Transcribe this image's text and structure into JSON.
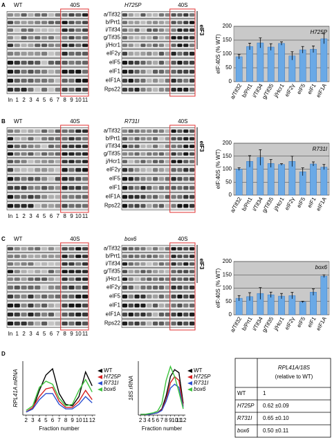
{
  "panels": [
    {
      "letter": "A",
      "strains": [
        "WT",
        "H725P"
      ],
      "fraction_label": "40S",
      "complex": "eIF3",
      "proteins": [
        "a/Tif32",
        "b/Prt1",
        "i/Tif34",
        "g/Tif35",
        "j/Hcr1",
        "eIF2γ",
        "eIF5",
        "eIF1",
        "eIF1A",
        "Rps22"
      ],
      "lanes": [
        "In",
        "1",
        "2",
        "3",
        "4",
        "5",
        "6",
        "7",
        "8",
        "9",
        "10",
        "11"
      ]
    },
    {
      "letter": "B",
      "strains": [
        "WT",
        "R731I"
      ],
      "fraction_label": "40S",
      "complex": "eIF3",
      "proteins": [
        "a/Tif32",
        "b/Prt1",
        "i/Tif34",
        "g/Tif35",
        "j/Hcr1",
        "eIF2γ",
        "eIF5",
        "eIF1",
        "eIF1A",
        "Rps22"
      ],
      "lanes": [
        "In",
        "1",
        "2",
        "3",
        "4",
        "5",
        "6",
        "7",
        "8",
        "9",
        "10",
        "11"
      ]
    },
    {
      "letter": "C",
      "strains": [
        "WT",
        "box6"
      ],
      "fraction_label": "40S",
      "complex": "eIF3",
      "proteins": [
        "a/Tif32",
        "b/Prt1",
        "i/Tif34",
        "g/Tif35",
        "j/Hcr1",
        "eIF2γ",
        "eIF5",
        "eIF1",
        "eIF1A",
        "Rps22"
      ],
      "lanes": [
        "In",
        "1",
        "2",
        "3",
        "4",
        "5",
        "6",
        "7",
        "8",
        "9",
        "10",
        "11"
      ]
    },
    {
      "letter": "D"
    }
  ],
  "chart_data": [
    {
      "type": "bar",
      "title": "H725P",
      "y_label": "eIF:40S (% WT)",
      "categories": [
        "a/Tif32",
        "b/Prt1",
        "i/Tif34",
        "g/Tif35",
        "j/Hcr1",
        "eIF2γ",
        "eIF5",
        "eIF1",
        "eIF1A"
      ],
      "values": [
        90,
        127,
        140,
        125,
        138,
        93,
        115,
        117,
        155
      ],
      "errors": [
        8,
        12,
        18,
        12,
        6,
        15,
        12,
        12,
        18
      ],
      "color": "#6aa9e6",
      "background": "#c9c9c9",
      "ylim": [
        0,
        200
      ],
      "yticks": [
        0,
        50,
        100,
        150,
        200
      ],
      "grid": true
    },
    {
      "type": "bar",
      "title": "R731I",
      "y_label": "eIF:40S (% WT)",
      "categories": [
        "a/Tif32",
        "b/Prt1",
        "i/Tif34",
        "g/Tif35",
        "j/Hcr1",
        "eIF2γ",
        "eIF5",
        "eIF1",
        "eIF1A"
      ],
      "values": [
        100,
        130,
        145,
        122,
        118,
        130,
        90,
        120,
        108
      ],
      "errors": [
        5,
        22,
        30,
        15,
        3,
        20,
        15,
        8,
        10
      ],
      "color": "#6aa9e6",
      "background": "#c9c9c9",
      "ylim": [
        0,
        200
      ],
      "yticks": [
        0,
        50,
        100,
        150,
        200
      ],
      "grid": true
    },
    {
      "type": "bar",
      "title": "box6",
      "y_label": "eIF:40S (% WT)",
      "categories": [
        "a/Tif32",
        "b/Prt1",
        "i/Tif34",
        "g/Tif35",
        "j/Hcr1",
        "eIF2γ",
        "eIF5",
        "eIF1",
        "eIF1A"
      ],
      "values": [
        62,
        68,
        80,
        75,
        70,
        72,
        48,
        85,
        145
      ],
      "errors": [
        10,
        15,
        22,
        10,
        10,
        12,
        3,
        12,
        5
      ],
      "color": "#6aa9e6",
      "background": "#c9c9c9",
      "ylim": [
        0,
        200
      ],
      "yticks": [
        0,
        50,
        100,
        150,
        200
      ],
      "grid": true
    },
    {
      "type": "line",
      "y_label": "RPL41A mRNA",
      "x_label": "Fraction number",
      "x": [
        2,
        3,
        4,
        5,
        6,
        7,
        8,
        9,
        10,
        11,
        12
      ],
      "xlim": [
        1.5,
        12.5
      ],
      "xticks": [
        2,
        3,
        4,
        5,
        6,
        7,
        8,
        9,
        10,
        11,
        12
      ],
      "ylim": [
        0,
        3.5
      ],
      "series": [
        {
          "name": "WT",
          "color": "#000000",
          "values": [
            0.2,
            0.4,
            1.6,
            2.6,
            3.0,
            1.4,
            0.7,
            0.6,
            1.2,
            2.8,
            1.9
          ]
        },
        {
          "name": "H725P",
          "color": "#d62020",
          "values": [
            0.2,
            0.5,
            1.2,
            1.7,
            1.8,
            0.9,
            0.5,
            0.5,
            0.9,
            1.6,
            1.0
          ]
        },
        {
          "name": "R731I",
          "color": "#2a4fd0",
          "values": [
            0.2,
            0.4,
            1.0,
            1.4,
            1.4,
            0.7,
            0.4,
            0.4,
            0.7,
            1.2,
            0.8
          ]
        },
        {
          "name": "box6",
          "color": "#3cc43c",
          "values": [
            0.3,
            0.6,
            1.8,
            2.2,
            2.0,
            1.1,
            0.6,
            0.7,
            1.6,
            2.3,
            1.5
          ]
        }
      ]
    },
    {
      "type": "line",
      "y_label": "18S rRNA",
      "x_label": "Fraction number",
      "x": [
        2,
        3,
        4,
        5,
        6,
        7,
        8,
        9,
        10,
        11,
        12
      ],
      "xlim": [
        1.5,
        12.5
      ],
      "xticks": [
        2,
        3,
        4,
        5,
        6,
        7,
        8,
        9,
        10,
        11,
        12
      ],
      "ylim": [
        0,
        7
      ],
      "series": [
        {
          "name": "WT",
          "color": "#000000",
          "values": [
            0.1,
            0.1,
            0.1,
            0.2,
            0.3,
            0.8,
            2.5,
            5.0,
            5.9,
            5.5,
            1.5
          ]
        },
        {
          "name": "H725P",
          "color": "#d62020",
          "values": [
            0.1,
            0.1,
            0.1,
            0.2,
            0.3,
            0.7,
            2.0,
            4.2,
            5.0,
            4.5,
            1.2
          ]
        },
        {
          "name": "R731I",
          "color": "#2a4fd0",
          "values": [
            0.1,
            0.1,
            0.1,
            0.2,
            0.3,
            0.6,
            1.8,
            3.5,
            4.0,
            3.6,
            1.0
          ]
        },
        {
          "name": "box6",
          "color": "#3cc43c",
          "values": [
            0.1,
            0.1,
            0.2,
            0.3,
            0.5,
            1.5,
            4.5,
            6.3,
            5.0,
            3.0,
            0.8
          ]
        }
      ]
    }
  ],
  "table": {
    "title": "RPL41A/18S",
    "subtitle": "(relative to WT)",
    "rows": [
      [
        "WT",
        "1"
      ],
      [
        "H725P",
        "0.62 ±0.09"
      ],
      [
        "R731I",
        "0.65 ±0.10"
      ],
      [
        "box6",
        "0.50 ±0.11"
      ]
    ]
  }
}
